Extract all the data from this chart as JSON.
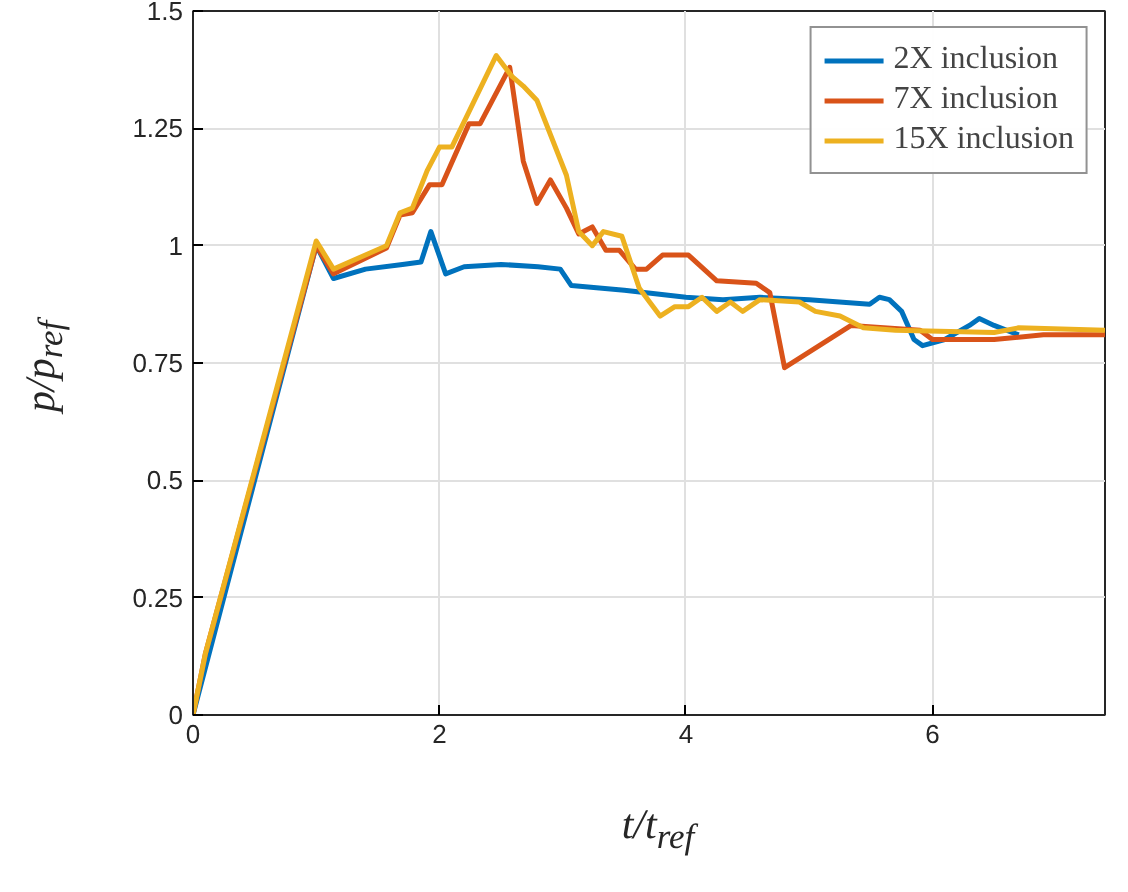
{
  "chart_data": {
    "type": "line",
    "xlabel": "t/t$_{ref}$",
    "ylabel": "p/p$_{ref}$",
    "xlim": [
      0,
      7.4
    ],
    "ylim": [
      0,
      1.5
    ],
    "xticks": [
      0,
      2,
      4,
      6
    ],
    "yticks": [
      0,
      {
        "value": 0.25,
        "label": "0.25"
      },
      {
        "value": 0.5,
        "label": "0.5"
      },
      {
        "value": 0.75,
        "label": "0.75"
      },
      1,
      {
        "value": 1.25,
        "label": "1.25"
      },
      {
        "value": 1.5,
        "label": "1.5"
      }
    ],
    "grid": true,
    "legend": "top right",
    "line_style": "solid",
    "marker": "none",
    "series": [
      {
        "name": "2X inclusion",
        "color": "#0072bd",
        "x": [
          0,
          1.0,
          1.14,
          1.4,
          1.7,
          1.85,
          1.93,
          2.05,
          2.2,
          2.5,
          2.8,
          2.98,
          3.07,
          3.5,
          4.0,
          4.3,
          4.6,
          5.0,
          5.49,
          5.57,
          5.65,
          5.75,
          5.85,
          5.92,
          6.1,
          6.3,
          6.38,
          6.5,
          6.7
        ],
        "values": [
          0,
          1.0,
          0.93,
          0.95,
          0.96,
          0.965,
          1.03,
          0.94,
          0.955,
          0.96,
          0.955,
          0.95,
          0.915,
          0.905,
          0.89,
          0.885,
          0.89,
          0.885,
          0.875,
          0.89,
          0.885,
          0.86,
          0.8,
          0.787,
          0.8,
          0.83,
          0.845,
          0.83,
          0.81
        ]
      },
      {
        "name": "7X inclusion",
        "color": "#d95319",
        "x": [
          0,
          0.1,
          1.0,
          1.14,
          1.57,
          1.68,
          1.78,
          1.92,
          2.02,
          2.24,
          2.33,
          2.57,
          2.68,
          2.79,
          2.9,
          3.03,
          3.13,
          3.24,
          3.35,
          3.46,
          3.59,
          3.68,
          3.81,
          4.02,
          4.25,
          4.57,
          4.68,
          4.8,
          5.34,
          5.9,
          6.0,
          6.2,
          6.5,
          6.9,
          7.4
        ],
        "values": [
          0,
          0.13,
          1.0,
          0.94,
          0.995,
          1.065,
          1.07,
          1.13,
          1.13,
          1.26,
          1.26,
          1.38,
          1.18,
          1.09,
          1.14,
          1.08,
          1.025,
          1.04,
          0.99,
          0.99,
          0.95,
          0.95,
          0.98,
          0.98,
          0.925,
          0.92,
          0.9,
          0.74,
          0.83,
          0.82,
          0.8,
          0.8,
          0.8,
          0.81,
          0.81
        ]
      },
      {
        "name": "15X inclusion",
        "color": "#edb120",
        "x": [
          0,
          0.1,
          1.0,
          1.14,
          1.57,
          1.68,
          1.78,
          1.9,
          2.0,
          2.1,
          2.46,
          2.59,
          2.68,
          2.79,
          3.03,
          3.13,
          3.24,
          3.33,
          3.48,
          3.62,
          3.79,
          3.91,
          4.02,
          4.13,
          4.25,
          4.36,
          4.46,
          4.6,
          4.92,
          5.05,
          5.25,
          5.44,
          5.7,
          6.5,
          6.7,
          7.4
        ],
        "values": [
          0,
          0.13,
          1.01,
          0.95,
          1.0,
          1.07,
          1.08,
          1.16,
          1.21,
          1.21,
          1.405,
          1.36,
          1.34,
          1.31,
          1.15,
          1.03,
          1.0,
          1.03,
          1.02,
          0.91,
          0.85,
          0.87,
          0.87,
          0.89,
          0.86,
          0.88,
          0.86,
          0.885,
          0.88,
          0.86,
          0.85,
          0.825,
          0.82,
          0.815,
          0.825,
          0.82
        ]
      }
    ]
  }
}
